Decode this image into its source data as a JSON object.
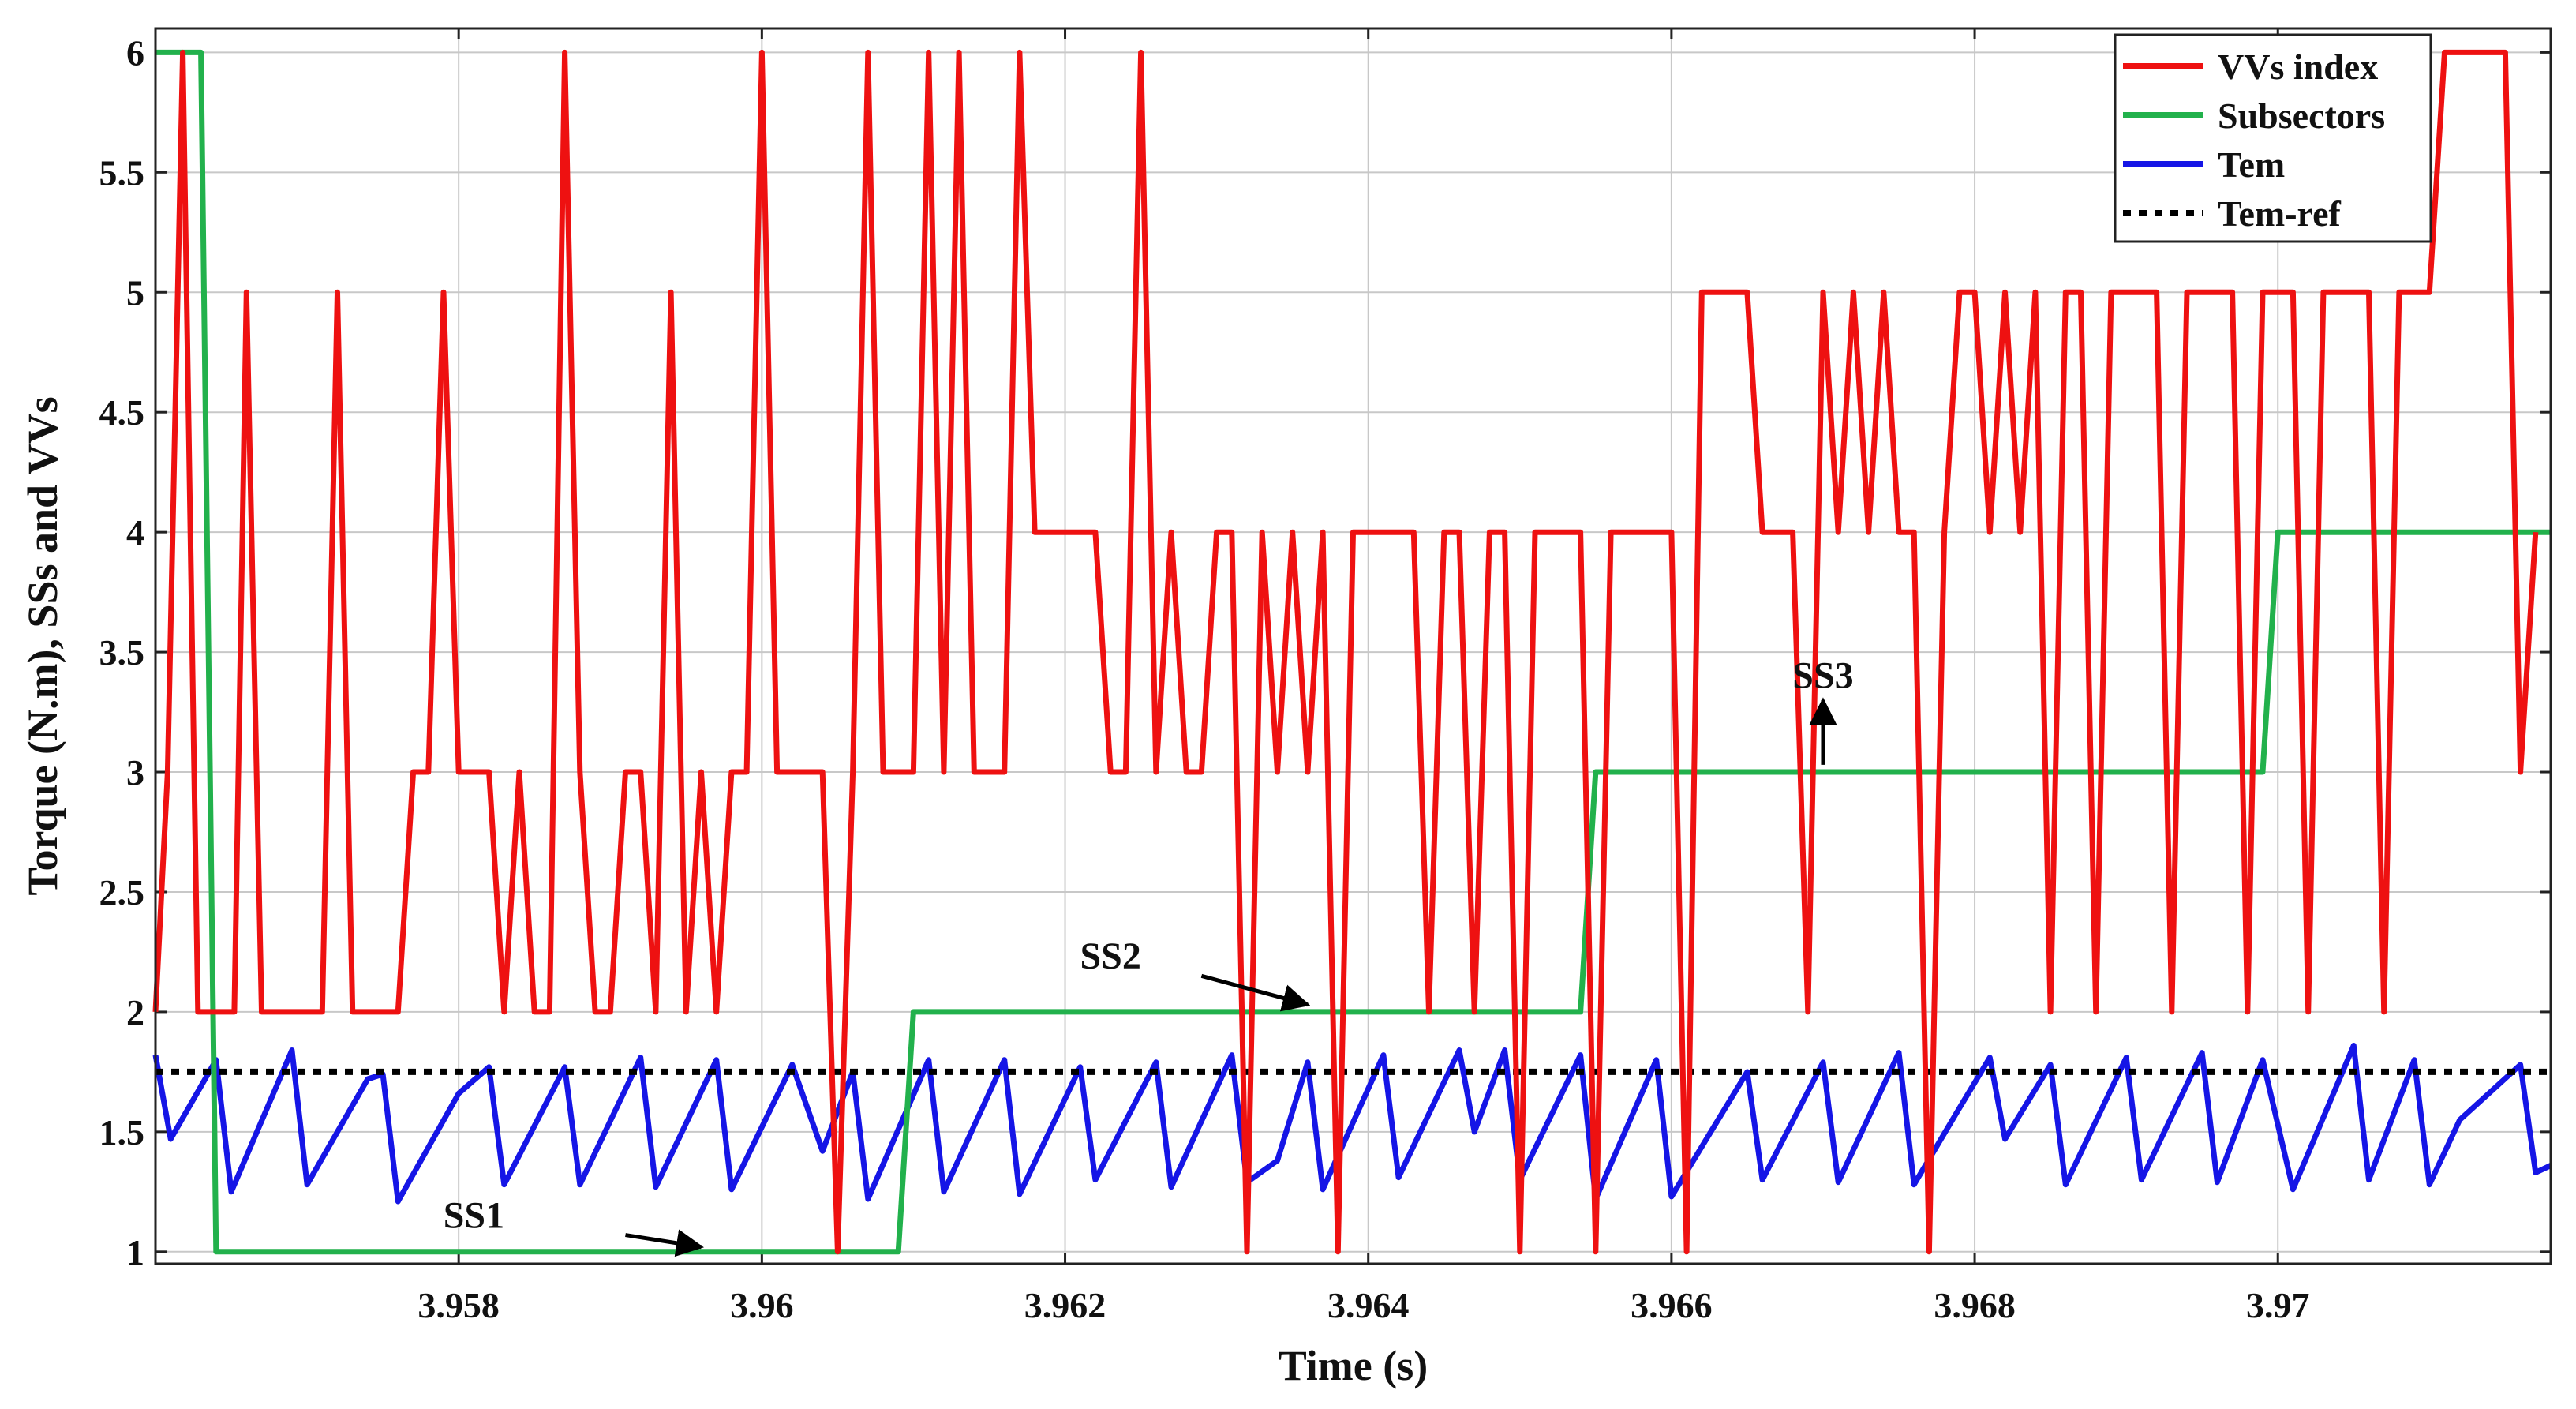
{
  "chart_data": {
    "type": "line",
    "xlabel": "Time (s)",
    "ylabel": "Torque (N.m), SSs and VVs",
    "xlim": [
      3.956,
      3.9718
    ],
    "ylim": [
      0.95,
      6.1
    ],
    "grid": true,
    "x_ticks": [
      {
        "value": 3.958,
        "label": "3.958"
      },
      {
        "value": 3.96,
        "label": "3.96"
      },
      {
        "value": 3.962,
        "label": "3.962"
      },
      {
        "value": 3.964,
        "label": "3.964"
      },
      {
        "value": 3.966,
        "label": "3.966"
      },
      {
        "value": 3.968,
        "label": "3.968"
      },
      {
        "value": 3.97,
        "label": "3.97"
      }
    ],
    "y_ticks": [
      {
        "value": 1,
        "label": "1"
      },
      {
        "value": 1.5,
        "label": "1.5"
      },
      {
        "value": 2,
        "label": "2"
      },
      {
        "value": 2.5,
        "label": "2.5"
      },
      {
        "value": 3,
        "label": "3"
      },
      {
        "value": 3.5,
        "label": "3.5"
      },
      {
        "value": 4,
        "label": "4"
      },
      {
        "value": 4.5,
        "label": "4.5"
      },
      {
        "value": 5,
        "label": "5"
      },
      {
        "value": 5.5,
        "label": "5.5"
      },
      {
        "value": 6,
        "label": "6"
      }
    ],
    "legend_position": "top-right",
    "series": [
      {
        "name": "VVs index",
        "color": "#ee1111",
        "style": "solid",
        "points": [
          [
            3.956,
            2
          ],
          [
            3.95608,
            3
          ],
          [
            3.95618,
            6
          ],
          [
            3.95628,
            2
          ],
          [
            3.95645,
            2
          ],
          [
            3.95652,
            2
          ],
          [
            3.9566,
            5
          ],
          [
            3.9567,
            2
          ],
          [
            3.9571,
            2
          ],
          [
            3.9572,
            5
          ],
          [
            3.9573,
            2
          ],
          [
            3.9576,
            2
          ],
          [
            3.9577,
            3
          ],
          [
            3.9578,
            3
          ],
          [
            3.9579,
            5
          ],
          [
            3.958,
            3
          ],
          [
            3.9582,
            3
          ],
          [
            3.9583,
            2
          ],
          [
            3.9584,
            3
          ],
          [
            3.9585,
            2
          ],
          [
            3.9586,
            2
          ],
          [
            3.9587,
            6
          ],
          [
            3.9588,
            3
          ],
          [
            3.9589,
            2
          ],
          [
            3.959,
            2
          ],
          [
            3.9591,
            3
          ],
          [
            3.9592,
            3
          ],
          [
            3.9593,
            2
          ],
          [
            3.9594,
            5
          ],
          [
            3.9595,
            2
          ],
          [
            3.9596,
            3
          ],
          [
            3.9597,
            2
          ],
          [
            3.9598,
            3
          ],
          [
            3.9599,
            3
          ],
          [
            3.96,
            6
          ],
          [
            3.9601,
            3
          ],
          [
            3.9604,
            3
          ],
          [
            3.9605,
            1
          ],
          [
            3.9606,
            3
          ],
          [
            3.9607,
            6
          ],
          [
            3.9608,
            3
          ],
          [
            3.961,
            3
          ],
          [
            3.9611,
            6
          ],
          [
            3.9612,
            3
          ],
          [
            3.9613,
            6
          ],
          [
            3.9614,
            3
          ],
          [
            3.9616,
            3
          ],
          [
            3.9617,
            6
          ],
          [
            3.9618,
            4
          ],
          [
            3.9622,
            4
          ],
          [
            3.9623,
            3
          ],
          [
            3.9624,
            3
          ],
          [
            3.9625,
            6
          ],
          [
            3.9626,
            3
          ],
          [
            3.9627,
            4
          ],
          [
            3.9628,
            3
          ],
          [
            3.9629,
            3
          ],
          [
            3.963,
            4
          ],
          [
            3.9631,
            4
          ],
          [
            3.9632,
            1
          ],
          [
            3.9633,
            4
          ],
          [
            3.9634,
            3
          ],
          [
            3.9635,
            4
          ],
          [
            3.9636,
            3
          ],
          [
            3.9637,
            4
          ],
          [
            3.9638,
            1
          ],
          [
            3.9639,
            4
          ],
          [
            3.9643,
            4
          ],
          [
            3.9644,
            2
          ],
          [
            3.9645,
            4
          ],
          [
            3.9646,
            4
          ],
          [
            3.9647,
            2
          ],
          [
            3.9648,
            4
          ],
          [
            3.9649,
            4
          ],
          [
            3.965,
            1
          ],
          [
            3.9651,
            4
          ],
          [
            3.9654,
            4
          ],
          [
            3.9655,
            1
          ],
          [
            3.9656,
            4
          ],
          [
            3.966,
            4
          ],
          [
            3.9661,
            1
          ],
          [
            3.9662,
            5
          ],
          [
            3.9665,
            5
          ],
          [
            3.9666,
            4
          ],
          [
            3.9668,
            4
          ],
          [
            3.9669,
            2
          ],
          [
            3.967,
            5
          ],
          [
            3.9671,
            4
          ],
          [
            3.9672,
            5
          ],
          [
            3.9673,
            4
          ],
          [
            3.9674,
            5
          ],
          [
            3.9675,
            4
          ],
          [
            3.9676,
            4
          ],
          [
            3.9677,
            1
          ],
          [
            3.9678,
            4
          ],
          [
            3.9679,
            5
          ],
          [
            3.968,
            5
          ],
          [
            3.9681,
            4
          ],
          [
            3.9682,
            5
          ],
          [
            3.9683,
            4
          ],
          [
            3.9684,
            5
          ],
          [
            3.9685,
            2
          ],
          [
            3.9686,
            5
          ],
          [
            3.9687,
            5
          ],
          [
            3.9688,
            2
          ],
          [
            3.9689,
            5
          ],
          [
            3.9692,
            5
          ],
          [
            3.9693,
            2
          ],
          [
            3.9694,
            5
          ],
          [
            3.9697,
            5
          ],
          [
            3.9698,
            2
          ],
          [
            3.9699,
            5
          ],
          [
            3.9701,
            5
          ],
          [
            3.9702,
            2
          ],
          [
            3.9703,
            5
          ],
          [
            3.9706,
            5
          ],
          [
            3.9707,
            2
          ],
          [
            3.9708,
            5
          ],
          [
            3.971,
            5
          ],
          [
            3.9711,
            6
          ],
          [
            3.9715,
            6
          ],
          [
            3.9716,
            3
          ],
          [
            3.9717,
            4
          ]
        ]
      },
      {
        "name": "Subsectors",
        "color": "#22b14c",
        "style": "solid",
        "points": [
          [
            3.956,
            6
          ],
          [
            3.9563,
            6
          ],
          [
            3.9564,
            1
          ],
          [
            3.9609,
            1
          ],
          [
            3.961,
            2
          ],
          [
            3.9654,
            2
          ],
          [
            3.9655,
            3
          ],
          [
            3.9699,
            3
          ],
          [
            3.97,
            4
          ],
          [
            3.9718,
            4
          ]
        ]
      },
      {
        "name": "Tem",
        "color": "#1515e6",
        "style": "solid",
        "points": [
          [
            3.956,
            1.82
          ],
          [
            3.9561,
            1.47
          ],
          [
            3.9564,
            1.8
          ],
          [
            3.9565,
            1.25
          ],
          [
            3.9569,
            1.84
          ],
          [
            3.957,
            1.28
          ],
          [
            3.9574,
            1.72
          ],
          [
            3.9575,
            1.74
          ],
          [
            3.9576,
            1.21
          ],
          [
            3.958,
            1.66
          ],
          [
            3.9582,
            1.77
          ],
          [
            3.9583,
            1.28
          ],
          [
            3.9587,
            1.77
          ],
          [
            3.9588,
            1.28
          ],
          [
            3.9592,
            1.81
          ],
          [
            3.9593,
            1.27
          ],
          [
            3.9597,
            1.8
          ],
          [
            3.9598,
            1.26
          ],
          [
            3.9602,
            1.78
          ],
          [
            3.9604,
            1.42
          ],
          [
            3.9606,
            1.75
          ],
          [
            3.9607,
            1.22
          ],
          [
            3.9611,
            1.8
          ],
          [
            3.9612,
            1.25
          ],
          [
            3.9616,
            1.8
          ],
          [
            3.9617,
            1.24
          ],
          [
            3.9621,
            1.77
          ],
          [
            3.9622,
            1.3
          ],
          [
            3.9626,
            1.79
          ],
          [
            3.9627,
            1.27
          ],
          [
            3.9631,
            1.82
          ],
          [
            3.9632,
            1.29
          ],
          [
            3.9634,
            1.38
          ],
          [
            3.9636,
            1.79
          ],
          [
            3.9637,
            1.26
          ],
          [
            3.9641,
            1.82
          ],
          [
            3.9642,
            1.31
          ],
          [
            3.9646,
            1.84
          ],
          [
            3.9647,
            1.5
          ],
          [
            3.9649,
            1.84
          ],
          [
            3.965,
            1.3
          ],
          [
            3.9654,
            1.82
          ],
          [
            3.9655,
            1.22
          ],
          [
            3.9659,
            1.8
          ],
          [
            3.966,
            1.23
          ],
          [
            3.9665,
            1.75
          ],
          [
            3.9666,
            1.3
          ],
          [
            3.967,
            1.79
          ],
          [
            3.9671,
            1.29
          ],
          [
            3.9675,
            1.83
          ],
          [
            3.9676,
            1.28
          ],
          [
            3.9679,
            1.6
          ],
          [
            3.9681,
            1.81
          ],
          [
            3.9682,
            1.47
          ],
          [
            3.9685,
            1.78
          ],
          [
            3.9686,
            1.28
          ],
          [
            3.969,
            1.81
          ],
          [
            3.9691,
            1.3
          ],
          [
            3.9695,
            1.83
          ],
          [
            3.9696,
            1.29
          ],
          [
            3.9699,
            1.8
          ],
          [
            3.9701,
            1.26
          ],
          [
            3.9705,
            1.86
          ],
          [
            3.9706,
            1.3
          ],
          [
            3.9709,
            1.8
          ],
          [
            3.971,
            1.28
          ],
          [
            3.9712,
            1.55
          ],
          [
            3.9716,
            1.78
          ],
          [
            3.9717,
            1.33
          ],
          [
            3.9718,
            1.36
          ]
        ]
      },
      {
        "name": "Tem-ref",
        "color": "#000000",
        "style": "dotted",
        "points": [
          [
            3.956,
            1.75
          ],
          [
            3.9718,
            1.75
          ]
        ]
      }
    ],
    "annotations": [
      {
        "id": "ss1",
        "label": "SS1",
        "label_at": [
          3.9581,
          1.1
        ],
        "arrow_from": [
          3.9591,
          1.07
        ],
        "arrow_to": [
          3.9596,
          1.02
        ]
      },
      {
        "id": "ss2",
        "label": "SS2",
        "label_at": [
          3.9623,
          2.18
        ],
        "arrow_from": [
          3.9629,
          2.15
        ],
        "arrow_to": [
          3.9636,
          2.03
        ]
      },
      {
        "id": "ss3",
        "label": "SS3",
        "label_at": [
          3.967,
          3.35
        ],
        "arrow_from": [
          3.967,
          3.03
        ],
        "arrow_to": [
          3.967,
          3.3
        ]
      }
    ]
  }
}
